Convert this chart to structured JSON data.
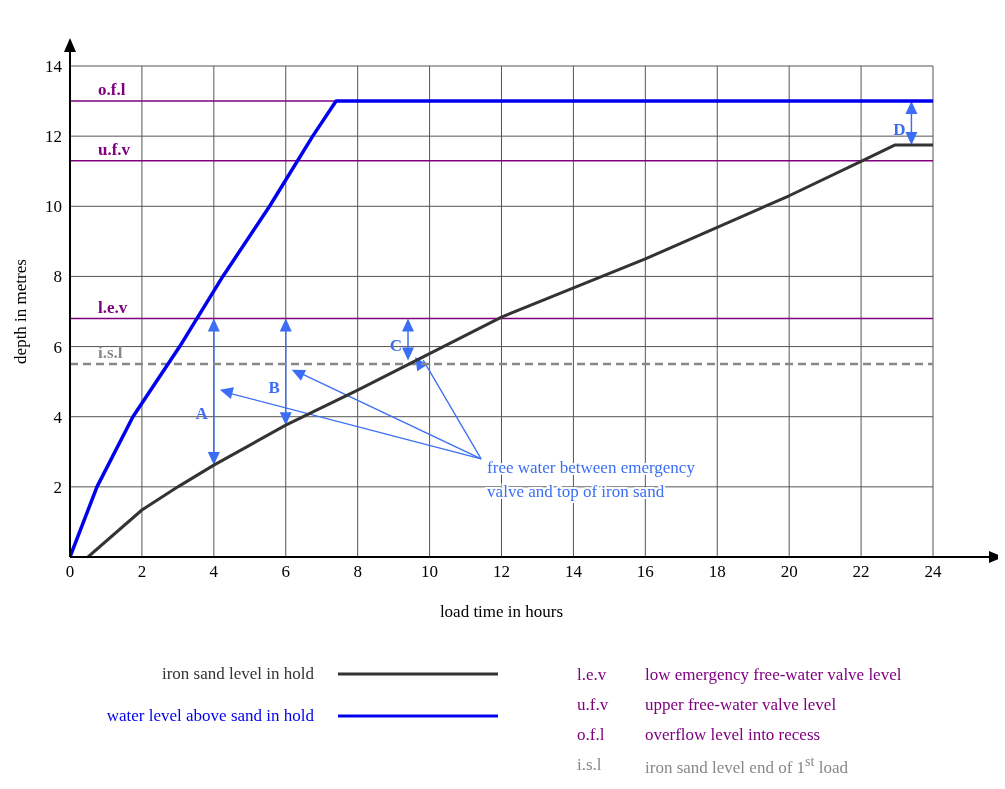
{
  "chart_data": {
    "type": "line",
    "xlabel": "load time in hours",
    "ylabel": "depth in metres",
    "xlim": [
      0,
      24
    ],
    "xticks": [
      0,
      2,
      4,
      6,
      8,
      10,
      12,
      14,
      16,
      18,
      20,
      22,
      24
    ],
    "ylim": [
      0,
      14
    ],
    "yticks": [
      {
        "value": 0,
        "label": null
      },
      2,
      4,
      6,
      8,
      10,
      12,
      14
    ],
    "grid": true,
    "legend": "bottom left",
    "marker": "none",
    "line_style": "solid",
    "series": [
      {
        "name": "iron sand level in hold",
        "color": "#333333",
        "x": [
          0.5,
          2,
          3,
          4,
          6,
          8,
          10,
          12,
          16,
          20,
          22,
          22.95,
          24
        ],
        "values": [
          0,
          1.34,
          2.0,
          2.62,
          3.76,
          4.76,
          5.8,
          6.84,
          8.5,
          10.3,
          11.28,
          11.75,
          11.75
        ]
      },
      {
        "name": "water level above sand in hold",
        "color": "#0000ee",
        "x": [
          0,
          0.75,
          1.75,
          3.05,
          4.25,
          5.55,
          6.75,
          7.4,
          24
        ],
        "values": [
          0,
          2,
          4,
          6,
          8,
          10,
          12,
          13,
          13
        ]
      }
    ],
    "ref_lines": [
      {
        "axis": "y",
        "value": 6.8,
        "label": "l.e.v",
        "color": "#800080",
        "line_style": "solid"
      },
      {
        "axis": "y",
        "value": 11.3,
        "label": "u.f.v",
        "color": "#800080",
        "line_style": "solid"
      },
      {
        "axis": "y",
        "value": 13,
        "label": "o.f.l",
        "color": "#800080",
        "line_style": "solid"
      },
      {
        "axis": "y",
        "value": 5.5,
        "label": "i.s.l",
        "color": "#888888",
        "line_style": "dashed"
      }
    ],
    "annotations": [
      {
        "text": "A",
        "x": 4,
        "y": 2.62
      },
      {
        "text": "B",
        "x": 6,
        "y": 3.76
      },
      {
        "text": "C",
        "x": 9.4,
        "y": 5.6
      },
      {
        "text": "D",
        "x": 23.4,
        "y": 11.75
      },
      {
        "text": "free water between emergency valve and top of iron sand",
        "x": 9.6,
        "y": 5.7
      },
      "low emergency free-water valve level",
      "upper free-water valve level",
      "overflow level into recess",
      "iron sand level end of 1$^{st}$ load"
    ]
  }
}
